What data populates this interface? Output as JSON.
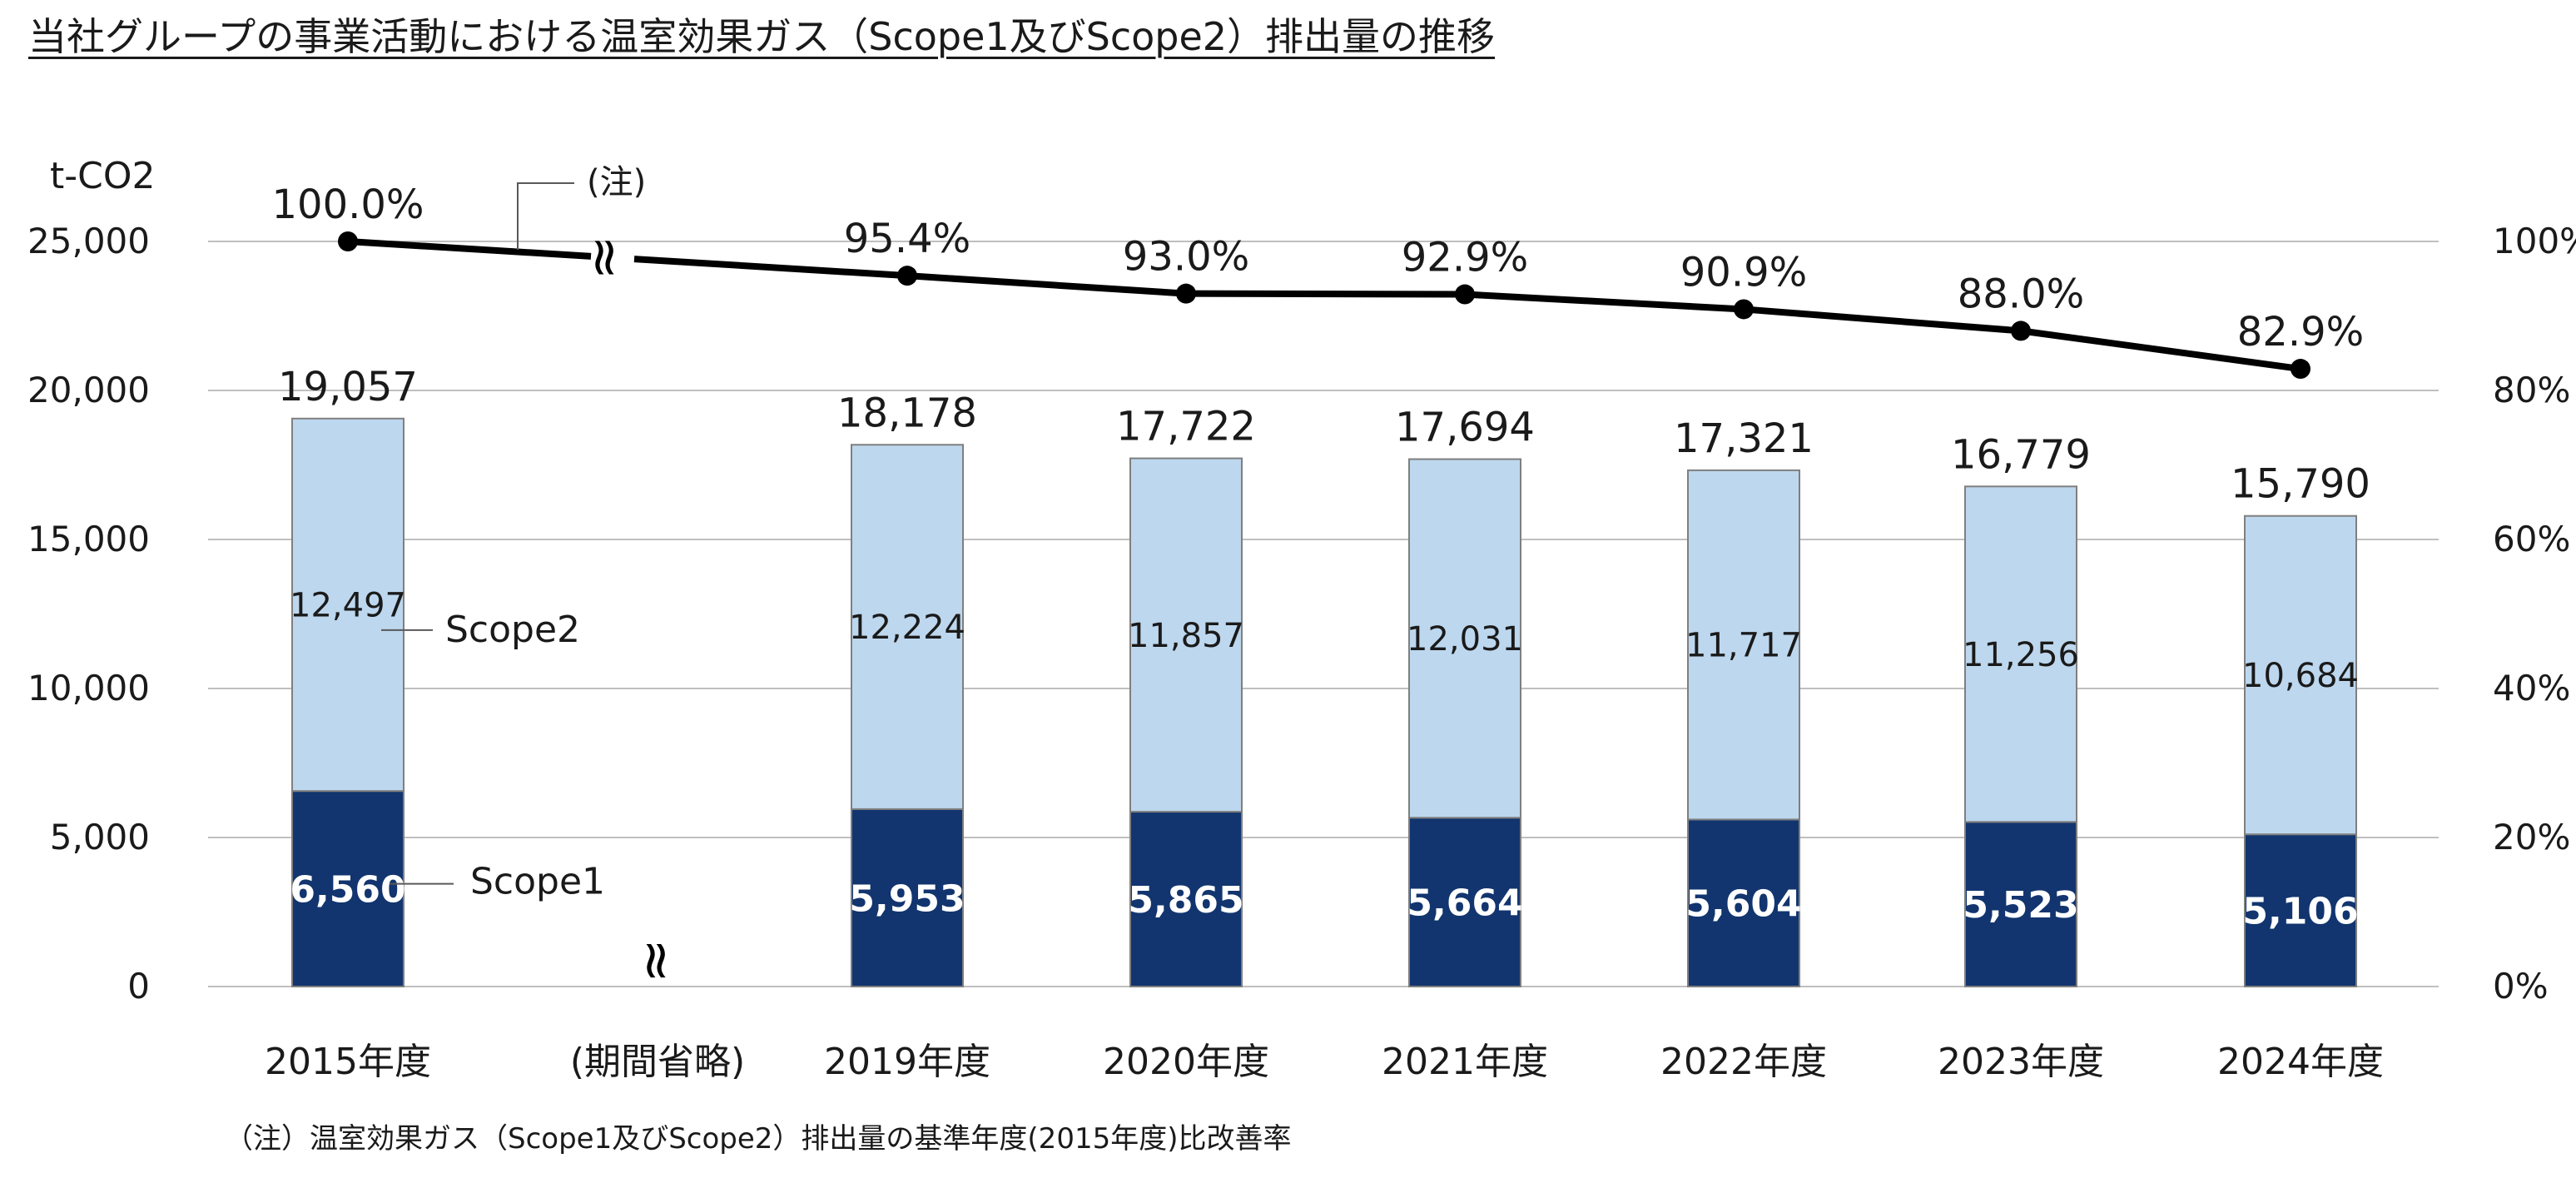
{
  "title": "当社グループの事業活動における温室効果ガス（Scope1及びScope2）排出量の推移",
  "footnote": "（注）温室効果ガス（Scope1及びScope2）排出量の基準年度(2015年度)比改善率",
  "chart_data": {
    "type": "bar",
    "stacked": true,
    "categories": [
      "2015年度",
      "(期間省略)",
      "2019年度",
      "2020年度",
      "2021年度",
      "2022年度",
      "2023年度",
      "2024年度"
    ],
    "series": [
      {
        "name": "Scope1",
        "values": [
          6560,
          null,
          5953,
          5865,
          5664,
          5604,
          5523,
          5106
        ],
        "labels": [
          "6,560",
          "",
          "5,953",
          "5,865",
          "5,664",
          "5,604",
          "5,523",
          "5,106"
        ],
        "color": "#12356f"
      },
      {
        "name": "Scope2",
        "values": [
          12497,
          null,
          12224,
          11857,
          12031,
          11717,
          11256,
          10684
        ],
        "labels": [
          "12,497",
          "",
          "12,224",
          "11,857",
          "12,031",
          "11,717",
          "11,256",
          "10,684"
        ],
        "color": "#bdd7ee"
      }
    ],
    "totals": [
      19057,
      null,
      18178,
      17722,
      17694,
      17321,
      16779,
      15790
    ],
    "total_labels": [
      "19,057",
      "",
      "18,178",
      "17,722",
      "17,694",
      "17,321",
      "16,779",
      "15,790"
    ],
    "line": {
      "name": "(注)",
      "axis": "right",
      "values": [
        100.0,
        null,
        95.4,
        93.0,
        92.9,
        90.9,
        88.0,
        82.9
      ],
      "labels": [
        "100.0%",
        "",
        "95.4%",
        "93.0%",
        "92.9%",
        "90.9%",
        "88.0%",
        "82.9%"
      ],
      "color": "#000000"
    },
    "ylabel": "t-CO2",
    "ylim": [
      0,
      25000
    ],
    "yticks": [
      "25,000",
      "20,000",
      "15,000",
      "10,000",
      "5,000",
      "0"
    ],
    "y2lim": [
      0,
      100
    ],
    "y2ticks": [
      "100%",
      "80%",
      "60%",
      "40%",
      "20%",
      "0%"
    ],
    "break_symbol": "≈",
    "grid": true
  }
}
